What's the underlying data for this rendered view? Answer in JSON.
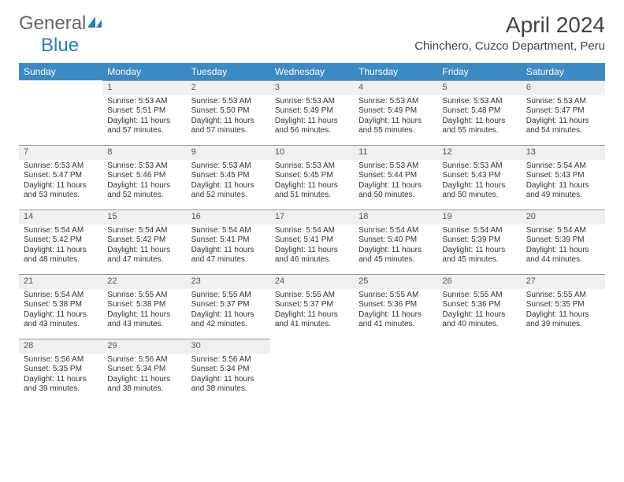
{
  "brand": {
    "general": "General",
    "blue": "Blue"
  },
  "title": "April 2024",
  "location": "Chinchero, Cuzco Department, Peru",
  "colors": {
    "header_bg": "#3b8ac4",
    "header_text": "#ffffff",
    "daynum_bg": "#eef0f1",
    "border": "#999999",
    "logo_blue": "#2a7bbf",
    "logo_gray": "#666666"
  },
  "dayHeaders": [
    "Sunday",
    "Monday",
    "Tuesday",
    "Wednesday",
    "Thursday",
    "Friday",
    "Saturday"
  ],
  "weeks": [
    [
      null,
      {
        "n": "1",
        "sr": "5:53 AM",
        "ss": "5:51 PM",
        "dl": "11 hours and 57 minutes."
      },
      {
        "n": "2",
        "sr": "5:53 AM",
        "ss": "5:50 PM",
        "dl": "11 hours and 57 minutes."
      },
      {
        "n": "3",
        "sr": "5:53 AM",
        "ss": "5:49 PM",
        "dl": "11 hours and 56 minutes."
      },
      {
        "n": "4",
        "sr": "5:53 AM",
        "ss": "5:49 PM",
        "dl": "11 hours and 55 minutes."
      },
      {
        "n": "5",
        "sr": "5:53 AM",
        "ss": "5:48 PM",
        "dl": "11 hours and 55 minutes."
      },
      {
        "n": "6",
        "sr": "5:53 AM",
        "ss": "5:47 PM",
        "dl": "11 hours and 54 minutes."
      }
    ],
    [
      {
        "n": "7",
        "sr": "5:53 AM",
        "ss": "5:47 PM",
        "dl": "11 hours and 53 minutes."
      },
      {
        "n": "8",
        "sr": "5:53 AM",
        "ss": "5:46 PM",
        "dl": "11 hours and 52 minutes."
      },
      {
        "n": "9",
        "sr": "5:53 AM",
        "ss": "5:45 PM",
        "dl": "11 hours and 52 minutes."
      },
      {
        "n": "10",
        "sr": "5:53 AM",
        "ss": "5:45 PM",
        "dl": "11 hours and 51 minutes."
      },
      {
        "n": "11",
        "sr": "5:53 AM",
        "ss": "5:44 PM",
        "dl": "11 hours and 50 minutes."
      },
      {
        "n": "12",
        "sr": "5:53 AM",
        "ss": "5:43 PM",
        "dl": "11 hours and 50 minutes."
      },
      {
        "n": "13",
        "sr": "5:54 AM",
        "ss": "5:43 PM",
        "dl": "11 hours and 49 minutes."
      }
    ],
    [
      {
        "n": "14",
        "sr": "5:54 AM",
        "ss": "5:42 PM",
        "dl": "11 hours and 48 minutes."
      },
      {
        "n": "15",
        "sr": "5:54 AM",
        "ss": "5:42 PM",
        "dl": "11 hours and 47 minutes."
      },
      {
        "n": "16",
        "sr": "5:54 AM",
        "ss": "5:41 PM",
        "dl": "11 hours and 47 minutes."
      },
      {
        "n": "17",
        "sr": "5:54 AM",
        "ss": "5:41 PM",
        "dl": "11 hours and 46 minutes."
      },
      {
        "n": "18",
        "sr": "5:54 AM",
        "ss": "5:40 PM",
        "dl": "11 hours and 45 minutes."
      },
      {
        "n": "19",
        "sr": "5:54 AM",
        "ss": "5:39 PM",
        "dl": "11 hours and 45 minutes."
      },
      {
        "n": "20",
        "sr": "5:54 AM",
        "ss": "5:39 PM",
        "dl": "11 hours and 44 minutes."
      }
    ],
    [
      {
        "n": "21",
        "sr": "5:54 AM",
        "ss": "5:38 PM",
        "dl": "11 hours and 43 minutes."
      },
      {
        "n": "22",
        "sr": "5:55 AM",
        "ss": "5:38 PM",
        "dl": "11 hours and 43 minutes."
      },
      {
        "n": "23",
        "sr": "5:55 AM",
        "ss": "5:37 PM",
        "dl": "11 hours and 42 minutes."
      },
      {
        "n": "24",
        "sr": "5:55 AM",
        "ss": "5:37 PM",
        "dl": "11 hours and 41 minutes."
      },
      {
        "n": "25",
        "sr": "5:55 AM",
        "ss": "5:36 PM",
        "dl": "11 hours and 41 minutes."
      },
      {
        "n": "26",
        "sr": "5:55 AM",
        "ss": "5:36 PM",
        "dl": "11 hours and 40 minutes."
      },
      {
        "n": "27",
        "sr": "5:55 AM",
        "ss": "5:35 PM",
        "dl": "11 hours and 39 minutes."
      }
    ],
    [
      {
        "n": "28",
        "sr": "5:56 AM",
        "ss": "5:35 PM",
        "dl": "11 hours and 39 minutes."
      },
      {
        "n": "29",
        "sr": "5:56 AM",
        "ss": "5:34 PM",
        "dl": "11 hours and 38 minutes."
      },
      {
        "n": "30",
        "sr": "5:56 AM",
        "ss": "5:34 PM",
        "dl": "11 hours and 38 minutes."
      },
      null,
      null,
      null,
      null
    ]
  ],
  "labels": {
    "sunrise": "Sunrise:",
    "sunset": "Sunset:",
    "daylight": "Daylight:"
  }
}
